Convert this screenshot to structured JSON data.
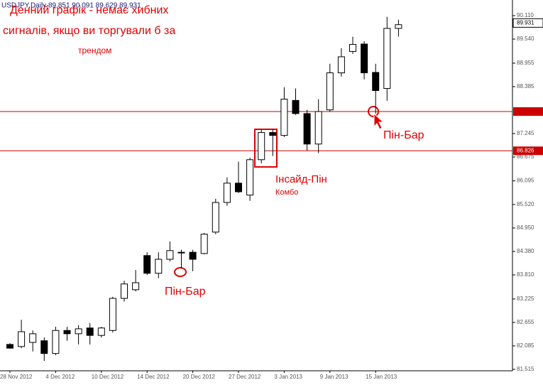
{
  "chart_data": {
    "type": "candlestick",
    "title": "USDJPY,Daily 89.851 90.091 89.629 89.931",
    "annotations": [
      "Денний графік - немає хибних",
      "сигналів, якщо ви торгували б за",
      "трендом",
      "Інсайд-Пін",
      "Комбо",
      "Пін-Бар",
      "Пін-Бар"
    ],
    "categories": [
      "28 Nov 2012",
      null,
      null,
      null,
      "4 Dec 2012",
      null,
      null,
      null,
      "10 Dec 2012",
      null,
      null,
      null,
      "14 Dec 2012",
      null,
      null,
      null,
      "20 Dec 2012",
      null,
      null,
      null,
      "27 Dec 2012",
      null,
      null,
      null,
      "3 Jan 2013",
      null,
      null,
      null,
      "9 Jan 2013",
      null,
      null,
      null,
      "15 Jan 2013",
      null,
      null
    ],
    "open": [
      82.12,
      82.07,
      82.17,
      82.21,
      81.9,
      82.46,
      82.38,
      82.52,
      82.34,
      82.46,
      83.24,
      83.45,
      84.28,
      83.85,
      84.19,
      84.36,
      84.36,
      84.33,
      84.85,
      85.57,
      86.04,
      85.75,
      86.61,
      87.27,
      87.2,
      88.05,
      87.73,
      86.99,
      87.82,
      88.72,
      89.24,
      89.42,
      88.73,
      88.34,
      89.8
    ],
    "high": [
      82.15,
      82.72,
      82.46,
      82.29,
      82.55,
      82.55,
      82.59,
      82.64,
      82.55,
      83.28,
      83.67,
      83.93,
      84.36,
      84.36,
      84.62,
      84.42,
      84.42,
      84.83,
      85.66,
      86.18,
      86.56,
      86.66,
      87.34,
      87.34,
      88.37,
      88.34,
      87.82,
      88.08,
      88.94,
      89.32,
      89.6,
      89.49,
      88.94,
      90.08,
      90.01
    ],
    "low": [
      82.02,
      82.03,
      81.95,
      81.72,
      81.86,
      82.21,
      82.12,
      82.12,
      82.29,
      82.41,
      83.16,
      83.41,
      83.81,
      83.73,
      84.14,
      83.97,
      83.9,
      84.31,
      84.8,
      85.49,
      85.8,
      85.61,
      86.52,
      86.7,
      87.16,
      87.7,
      86.82,
      86.77,
      87.77,
      88.63,
      89.18,
      88.56,
      87.73,
      88.04,
      89.6
    ],
    "close": [
      82.03,
      82.43,
      82.38,
      81.9,
      82.46,
      82.38,
      82.5,
      82.34,
      82.52,
      83.24,
      83.59,
      83.62,
      83.85,
      84.19,
      84.4,
      84.36,
      84.19,
      84.8,
      85.57,
      86.04,
      85.83,
      86.61,
      87.27,
      87.2,
      88.08,
      87.73,
      86.99,
      87.78,
      88.72,
      89.11,
      89.41,
      88.72,
      88.29,
      89.8,
      89.89
    ],
    "up_color": "#ffffff",
    "down_color": "#000000",
    "outline_color": "#000000",
    "ylim": [
      81.48,
      90.49
    ],
    "yticks": [
      {
        "value": 90.11,
        "label": "90.110"
      },
      {
        "value": 89.54,
        "label": "89.540"
      },
      88.955,
      88.385,
      87.245,
      86.675,
      86.095,
      {
        "value": 85.52,
        "label": "85.520"
      },
      {
        "value": 84.95,
        "label": "84.950"
      },
      {
        "value": 84.38,
        "label": "84.380"
      },
      {
        "value": 83.81,
        "label": "83.810"
      },
      83.225,
      82.655,
      82.085,
      81.515
    ],
    "current_price": 89.931,
    "levels": [
      {
        "value": 87.78
      },
      {
        "value": 86.826,
        "label": "86.826"
      }
    ],
    "level_color": "#cc0000",
    "grid": false
  }
}
